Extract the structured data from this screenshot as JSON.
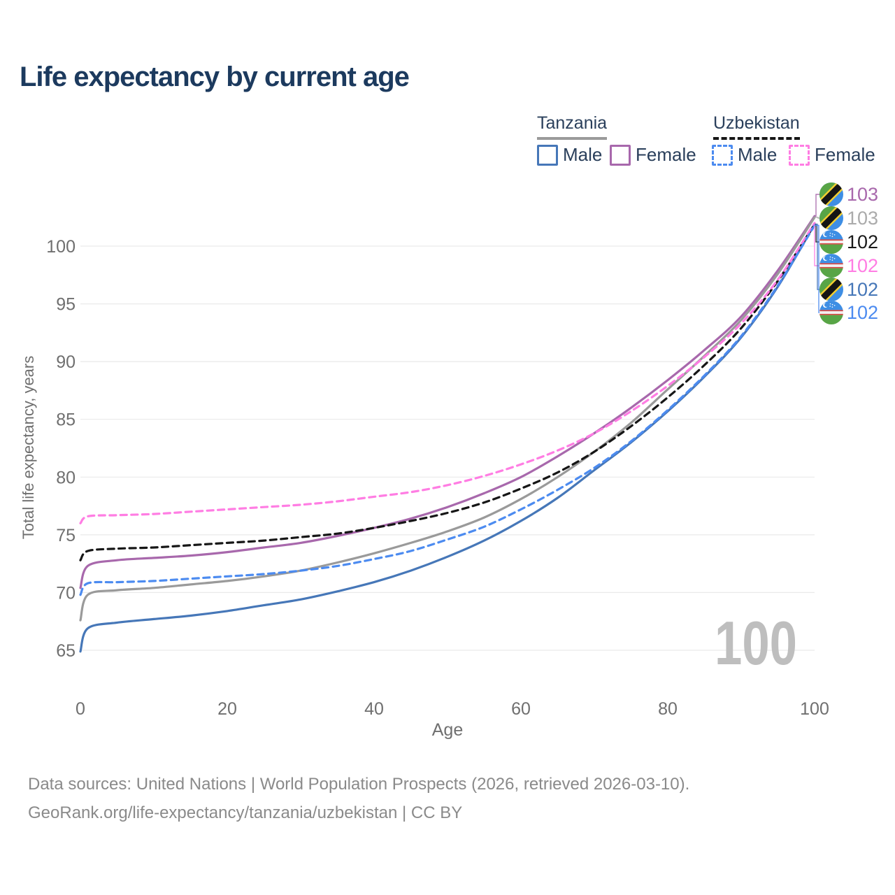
{
  "title": "Life expectancy by current age",
  "theme": {
    "title_color": "#1C3A5E",
    "legend_text_color": "#2A3F5B",
    "axis_text_color": "#6F6F6F",
    "gridline_color": "#E9E9E9",
    "watermark_color": "#BEBEBE",
    "footer_text_color": "#8A8A8A"
  },
  "legend": {
    "groups": [
      {
        "label": "Tanzania",
        "line_style": "solid",
        "underline_color": "#9A9A9A"
      },
      {
        "label": "Uzbekistan",
        "line_style": "dashed",
        "underline_color": "#161616"
      }
    ],
    "items": [
      {
        "label": "Male",
        "group": "Tanzania",
        "color": "#4677B8",
        "dashed": false
      },
      {
        "label": "Female",
        "group": "Tanzania",
        "color": "#A868AC",
        "dashed": false
      },
      {
        "label": "Male",
        "group": "Uzbekistan",
        "color": "#4C8BF0",
        "dashed": true
      },
      {
        "label": "Female",
        "group": "Uzbekistan",
        "color": "#FF7DE3",
        "dashed": true
      }
    ]
  },
  "chart_data": {
    "type": "line",
    "title": "Life expectancy by current age",
    "xlabel": "Age",
    "ylabel": "Total life expectancy, years",
    "xlim": [
      0,
      100
    ],
    "ylim": [
      63.5,
      104
    ],
    "xticks": [
      0,
      20,
      40,
      60,
      80,
      100
    ],
    "yticks": [
      65,
      70,
      75,
      80,
      85,
      90,
      95,
      100
    ],
    "grid": "horizontal",
    "legend_position": "top-right",
    "watermark": "100",
    "x": [
      0,
      1,
      5,
      10,
      15,
      20,
      25,
      30,
      35,
      40,
      45,
      50,
      55,
      60,
      65,
      70,
      75,
      80,
      85,
      90,
      95,
      100
    ],
    "series": [
      {
        "name": "Tanzania Female",
        "country": "Tanzania",
        "sex": "Female",
        "color": "#A868AC",
        "dashed": false,
        "end_label": "103",
        "values": [
          70.4,
          72.3,
          72.8,
          73.0,
          73.2,
          73.5,
          73.9,
          74.3,
          74.9,
          75.6,
          76.4,
          77.4,
          78.6,
          80.0,
          81.8,
          83.8,
          86.0,
          88.4,
          91.0,
          93.9,
          97.9,
          102.6
        ]
      },
      {
        "name": "Tanzania",
        "country": "Tanzania",
        "sex": "Both",
        "color": "#9A9A9A",
        "dashed": false,
        "end_label": "103",
        "values": [
          67.6,
          69.8,
          70.2,
          70.4,
          70.7,
          71.0,
          71.4,
          71.9,
          72.6,
          73.4,
          74.3,
          75.3,
          76.5,
          78.1,
          80.0,
          82.2,
          84.7,
          87.6,
          90.5,
          93.6,
          97.6,
          102.5
        ]
      },
      {
        "name": "Uzbekistan",
        "country": "Uzbekistan",
        "sex": "Both",
        "color": "#161616",
        "dashed": true,
        "end_label": "102",
        "values": [
          72.8,
          73.6,
          73.8,
          73.9,
          74.1,
          74.3,
          74.5,
          74.8,
          75.1,
          75.6,
          76.2,
          76.9,
          77.8,
          79.0,
          80.4,
          82.2,
          84.4,
          86.9,
          89.7,
          92.9,
          97.0,
          101.9
        ]
      },
      {
        "name": "Uzbekistan Female",
        "country": "Uzbekistan",
        "sex": "Female",
        "color": "#FF7DE3",
        "dashed": true,
        "end_label": "102",
        "values": [
          76.0,
          76.6,
          76.7,
          76.8,
          77.0,
          77.2,
          77.4,
          77.6,
          77.9,
          78.3,
          78.7,
          79.3,
          80.1,
          81.1,
          82.3,
          83.8,
          85.7,
          87.9,
          90.4,
          93.3,
          97.1,
          102.0
        ]
      },
      {
        "name": "Tanzania Male",
        "country": "Tanzania",
        "sex": "Male",
        "color": "#4677B8",
        "dashed": false,
        "end_label": "102",
        "values": [
          64.9,
          66.9,
          67.4,
          67.7,
          68.0,
          68.4,
          68.9,
          69.4,
          70.1,
          70.9,
          71.9,
          73.1,
          74.5,
          76.2,
          78.2,
          80.6,
          83.0,
          85.7,
          88.7,
          92.1,
          96.5,
          101.9
        ]
      },
      {
        "name": "Uzbekistan Male",
        "country": "Uzbekistan",
        "sex": "Male",
        "color": "#4C8BF0",
        "dashed": true,
        "end_label": "102",
        "values": [
          69.8,
          70.8,
          70.9,
          71.0,
          71.2,
          71.4,
          71.6,
          71.9,
          72.3,
          72.9,
          73.6,
          74.6,
          75.7,
          77.2,
          78.9,
          80.8,
          83.1,
          85.8,
          88.8,
          92.2,
          96.6,
          101.8
        ]
      }
    ]
  },
  "end_labels": [
    {
      "value": "103",
      "color": "#A868AC",
      "flag": "tanzania",
      "series": "Tanzania Female"
    },
    {
      "value": "103",
      "color": "#ABABAB",
      "flag": "tanzania",
      "series": "Tanzania"
    },
    {
      "value": "102",
      "color": "#1A1A1A",
      "flag": "uzbekistan",
      "series": "Uzbekistan"
    },
    {
      "value": "102",
      "color": "#FF7DE3",
      "flag": "uzbekistan",
      "series": "Uzbekistan Female"
    },
    {
      "value": "102",
      "color": "#4677B8",
      "flag": "tanzania",
      "series": "Tanzania Male"
    },
    {
      "value": "102",
      "color": "#4C8BF0",
      "flag": "uzbekistan",
      "series": "Uzbekistan Male"
    }
  ],
  "footer": {
    "line1": "Data sources: United Nations | World Population Prospects (2026, retrieved 2026-03-10).",
    "line2": "GeoRank.org/life-expectancy/tanzania/uzbekistan | CC BY"
  }
}
